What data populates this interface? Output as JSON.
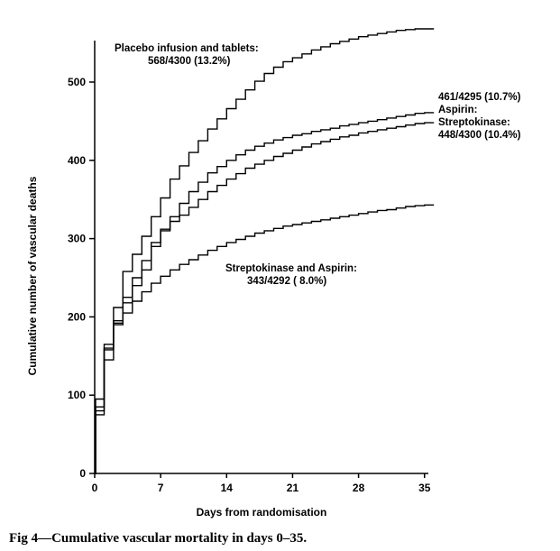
{
  "chart_data": {
    "type": "line",
    "step": true,
    "xlabel": "Days from randomisation",
    "ylabel": "Cumulative number of vascular deaths",
    "xlim": [
      0,
      36
    ],
    "ylim": [
      0,
      600
    ],
    "xticks": [
      0,
      7,
      14,
      21,
      28,
      35
    ],
    "yticks": [
      0,
      100,
      200,
      300,
      400,
      500
    ],
    "grid": false,
    "series": [
      {
        "name": "Placebo infusion and tablets:",
        "result": "568/4300 (13.2%)",
        "label_position": "top-left",
        "x": [
          0,
          0.1,
          1,
          2,
          3,
          4,
          5,
          6,
          7,
          8,
          9,
          10,
          11,
          12,
          13,
          14,
          15,
          16,
          17,
          18,
          19,
          20,
          21,
          22,
          23,
          24,
          25,
          26,
          27,
          28,
          29,
          30,
          31,
          32,
          33,
          34,
          35,
          36
        ],
        "y": [
          0,
          95,
          165,
          212,
          258,
          280,
          303,
          328,
          352,
          376,
          393,
          410,
          425,
          440,
          453,
          466,
          478,
          490,
          501,
          511,
          519,
          526,
          531,
          536,
          541,
          545,
          549,
          552,
          555,
          558,
          560,
          562,
          564,
          566,
          567,
          568,
          568,
          568
        ]
      },
      {
        "name": "Aspirin:",
        "result": "461/4295 (10.7%)",
        "label_position": "right",
        "x": [
          0,
          0.1,
          1,
          2,
          3,
          4,
          5,
          6,
          7,
          8,
          9,
          10,
          11,
          12,
          13,
          14,
          15,
          16,
          17,
          18,
          19,
          20,
          21,
          22,
          23,
          24,
          25,
          26,
          27,
          28,
          29,
          30,
          31,
          32,
          33,
          34,
          35,
          36
        ],
        "y": [
          0,
          85,
          160,
          195,
          225,
          250,
          272,
          295,
          312,
          328,
          345,
          360,
          372,
          384,
          392,
          400,
          407,
          413,
          418,
          422,
          426,
          429,
          432,
          434,
          437,
          439,
          441,
          444,
          446,
          448,
          450,
          452,
          454,
          456,
          458,
          460,
          461,
          461
        ]
      },
      {
        "name": "Streptokinase:",
        "result": "448/4300 (10.4%)",
        "label_position": "right",
        "x": [
          0,
          0.1,
          1,
          2,
          3,
          4,
          5,
          6,
          7,
          8,
          9,
          10,
          11,
          12,
          13,
          14,
          15,
          16,
          17,
          18,
          19,
          20,
          21,
          22,
          23,
          24,
          25,
          26,
          27,
          28,
          29,
          30,
          31,
          32,
          33,
          34,
          35,
          36
        ],
        "y": [
          0,
          80,
          158,
          192,
          218,
          240,
          260,
          290,
          310,
          322,
          330,
          340,
          350,
          360,
          368,
          376,
          383,
          390,
          395,
          400,
          405,
          409,
          413,
          417,
          421,
          424,
          427,
          430,
          432,
          435,
          437,
          439,
          441,
          443,
          445,
          447,
          448,
          448
        ]
      },
      {
        "name": "Streptokinase and Aspirin:",
        "result": "343/4292 ( 8.0%)",
        "label_position": "center",
        "x": [
          0,
          0.1,
          1,
          2,
          3,
          4,
          5,
          6,
          7,
          8,
          9,
          10,
          11,
          12,
          13,
          14,
          15,
          16,
          17,
          18,
          19,
          20,
          21,
          22,
          23,
          24,
          25,
          26,
          27,
          28,
          29,
          30,
          31,
          32,
          33,
          34,
          35,
          36
        ],
        "y": [
          0,
          75,
          145,
          190,
          205,
          220,
          232,
          243,
          252,
          260,
          267,
          273,
          279,
          285,
          290,
          295,
          299,
          303,
          307,
          310,
          313,
          316,
          318,
          320,
          322,
          324,
          326,
          328,
          330,
          332,
          334,
          336,
          337,
          339,
          341,
          342,
          343,
          343
        ]
      }
    ],
    "caption": "Fig 4—Cumulative vascular mortality in days 0–35."
  }
}
